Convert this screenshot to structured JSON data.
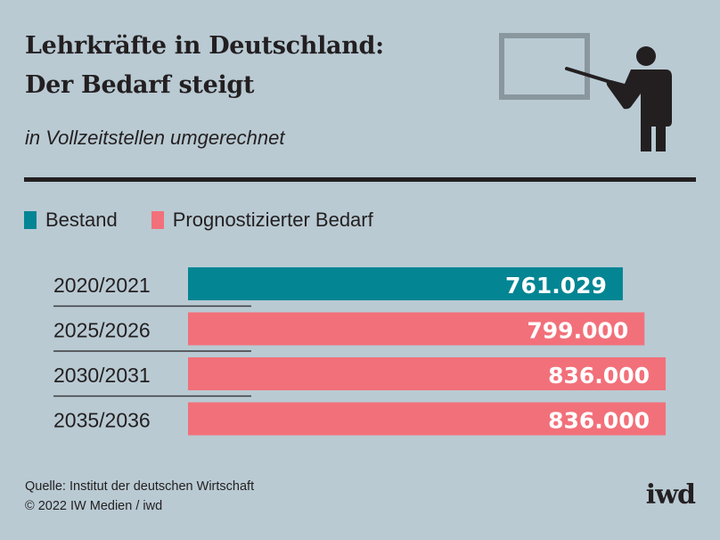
{
  "header": {
    "title_line1": "Lehrkräfte in Deutschland:",
    "title_line2": "Der Bedarf steigt",
    "subtitle": "in Vollzeitstellen umgerechnet",
    "icon": "teacher-at-board-icon"
  },
  "legend": [
    {
      "label": "Bestand",
      "color": "#038593"
    },
    {
      "label": "Prognostizierter Bedarf",
      "color": "#f2707a"
    }
  ],
  "chart_data": {
    "type": "bar",
    "orientation": "horizontal",
    "title": "Lehrkräfte in Deutschland: Der Bedarf steigt",
    "subtitle": "in Vollzeitstellen umgerechnet",
    "categories": [
      "2020/2021",
      "2025/2026",
      "2030/2031",
      "2035/2036"
    ],
    "values": [
      761029,
      799000,
      836000,
      836000
    ],
    "value_labels": [
      "761.029",
      "799.000",
      "836.000",
      "836.000"
    ],
    "series_type": [
      "Bestand",
      "Prognostizierter Bedarf",
      "Prognostizierter Bedarf",
      "Prognostizierter Bedarf"
    ],
    "colors": {
      "Bestand": "#038593",
      "Prognostizierter Bedarf": "#f2707a"
    },
    "xlim": [
      0,
      836000
    ],
    "grid": false,
    "legend_position": "top-left"
  },
  "footer": {
    "source": "Quelle: Institut der deutschen Wirtschaft",
    "copyright": "© 2022 IW Medien / iwd",
    "logo": "iwd"
  }
}
